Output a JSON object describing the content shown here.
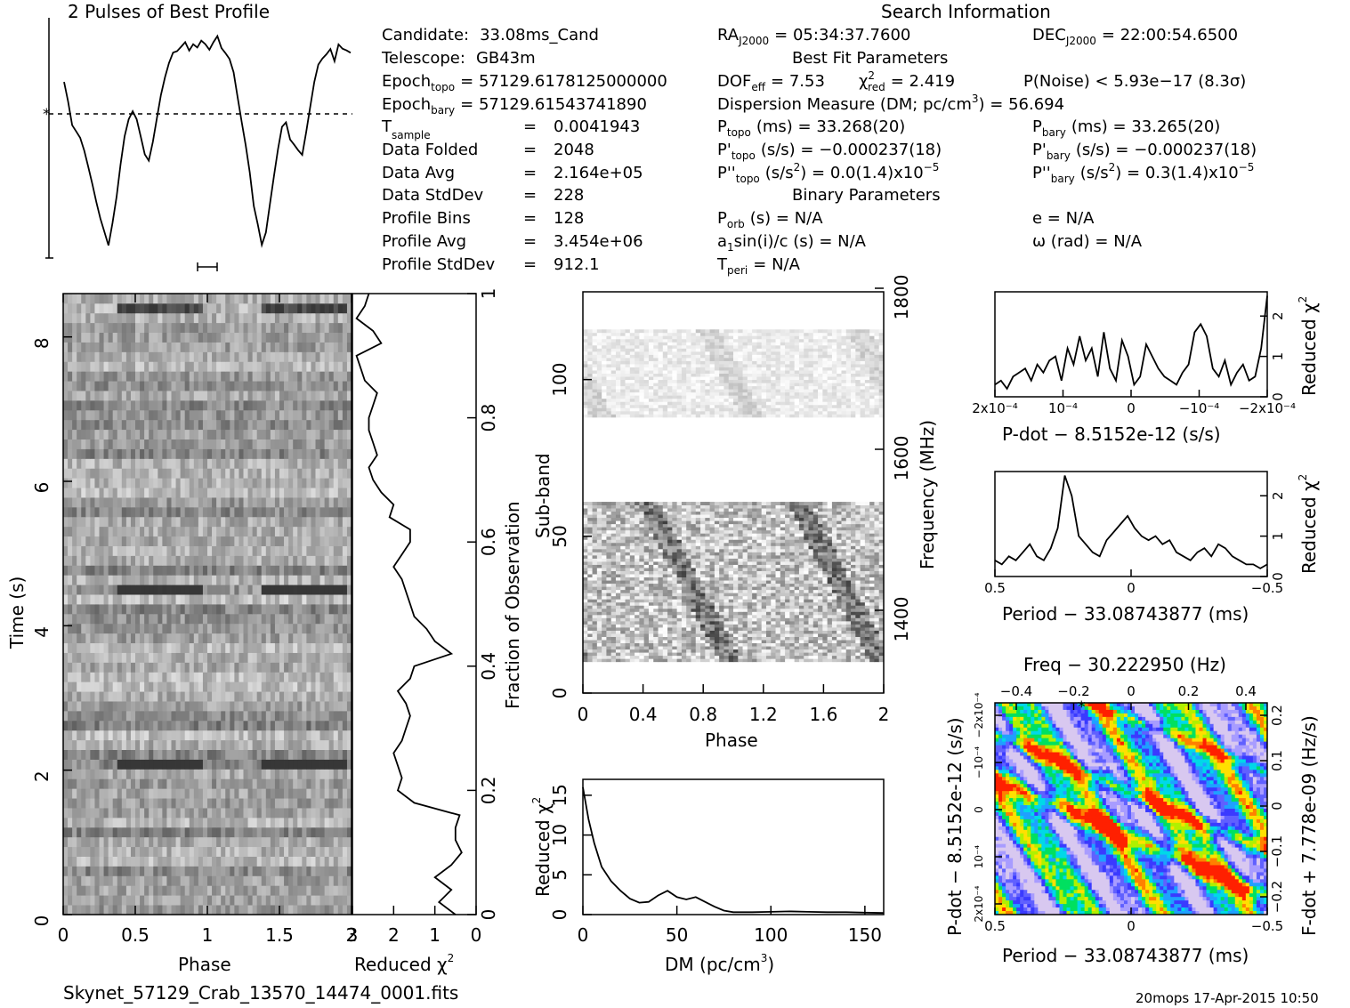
{
  "header": {
    "profile_title": "2 Pulses of Best Profile",
    "search_title": "Search Information",
    "best_fit_title": "Best Fit Parameters",
    "binary_title": "Binary Parameters",
    "filename": "Skynet_57129_Crab_13570_14474_0001.fits",
    "footer_stamp": "20mops 17-Apr-2015 10:50"
  },
  "info": {
    "col1": [
      {
        "label": "Candidate:",
        "value": "33.08ms_Cand"
      },
      {
        "label": "Telescope:",
        "value": "GB43m"
      },
      {
        "label": "Epoch",
        "sub": "topo",
        "value": "= 57129.6178125000000"
      },
      {
        "label": "Epoch",
        "sub": "bary",
        "value": "= 57129.61543741890"
      },
      {
        "label": "T",
        "sub": "sample",
        "eq": "=",
        "value": "0.0041943"
      },
      {
        "label": "Data Folded",
        "eq": "=",
        "value": "2048"
      },
      {
        "label": "Data Avg",
        "eq": "=",
        "value": "2.164e+05"
      },
      {
        "label": "Data StdDev",
        "eq": "=",
        "value": "228"
      },
      {
        "label": "Profile Bins",
        "eq": "=",
        "value": "128"
      },
      {
        "label": "Profile Avg",
        "eq": "=",
        "value": "3.454e+06"
      },
      {
        "label": "Profile StdDev",
        "eq": "=",
        "value": "912.1"
      }
    ],
    "ra": {
      "label": "RA",
      "sub": "J2000",
      "value": "= 05:34:37.7600"
    },
    "dec": {
      "label": "DEC",
      "sub": "J2000",
      "value": "= 22:00:54.6500"
    },
    "dof": {
      "label": "DOF",
      "sub": "eff",
      "value": "= 7.53"
    },
    "chi2": {
      "label": "χ",
      "sup": "2",
      "sub": "red",
      "value": "= 2.419"
    },
    "pnoise": "P(Noise) < 5.93e−17   (8.3σ)",
    "dm_line": {
      "text": "Dispersion Measure (DM; pc/cm",
      "sup": "3",
      "value": ") = 56.694"
    },
    "ptopo": {
      "label": "P",
      "sub": "topo",
      "value": "(ms) =  33.268(20)"
    },
    "pbary": {
      "label": "P",
      "sub": "bary",
      "value": "(ms) =  33.265(20)"
    },
    "pdtopo": {
      "label": "P'",
      "sub": "topo",
      "value": "(s/s) = −0.000237(18)"
    },
    "pdbary": {
      "label": "P'",
      "sub": "bary",
      "value": "(s/s) = −0.000237(18)"
    },
    "pddtopo": {
      "label": "P''",
      "sub": "topo",
      "value": "(s/s",
      "sup": "2",
      "value2": ") = 0.0(1.4)x10",
      "sup2": "−5"
    },
    "pddbary": {
      "label": "P''",
      "sub": "bary",
      "value": "(s/s",
      "sup": "2",
      "value2": ") =  0.3(1.4)x10",
      "sup2": "−5"
    },
    "porb": {
      "label": "P",
      "sub": "orb",
      "value": "(s) = N/A"
    },
    "a1": {
      "label": "a",
      "sub": "1",
      "value": "sin(i)/c (s) = N/A"
    },
    "tperi": {
      "label": "T",
      "sub": "peri",
      "value": "= N/A"
    },
    "ecc": "e = N/A",
    "omega": "ω (rad) = N/A"
  },
  "chart_data": [
    {
      "type": "line",
      "id": "pulse-profile",
      "title": "2 Pulses of Best Profile",
      "x_range": [
        0,
        2
      ],
      "values": [
        0.78,
        0.7,
        0.58,
        0.54,
        0.52,
        0.46,
        0.4,
        0.3,
        0.22,
        0.14,
        0.08,
        0.03,
        0.12,
        0.26,
        0.4,
        0.54,
        0.62,
        0.64,
        0.6,
        0.52,
        0.46,
        0.42,
        0.5,
        0.62,
        0.73,
        0.81,
        0.86,
        0.91,
        0.93,
        0.95,
        0.96,
        0.94,
        0.97,
        0.95,
        0.98,
        0.96,
        0.92,
        0.97,
        0.99,
        0.95,
        0.92,
        0.88,
        0.82,
        0.72,
        0.6,
        0.48,
        0.36,
        0.22,
        0.12,
        0.04,
        0.08,
        0.22,
        0.34,
        0.48,
        0.58,
        0.6,
        0.52,
        0.48,
        0.47,
        0.46,
        0.56,
        0.68,
        0.78,
        0.88,
        0.9,
        0.92,
        0.94,
        0.89,
        0.95,
        0.94,
        0.93,
        0.91
      ],
      "mean_level": 0.62
    },
    {
      "type": "heatmap",
      "id": "time-phase",
      "xlabel": "Phase",
      "ylabel": "Time (s)",
      "x_ticks": [
        "0",
        "0.5",
        "1",
        "1.5",
        "2"
      ],
      "y_ticks": [
        "0",
        "2",
        "4",
        "6",
        "8"
      ],
      "x_range": [
        0,
        2
      ],
      "y_range": [
        0,
        8.6
      ]
    },
    {
      "type": "line",
      "id": "time-chi2",
      "xlabel": "Reduced χ",
      "xlabel_sup": "2",
      "ylabel": "Fraction of Observation",
      "x_ticks": [
        "3",
        "2",
        "1",
        "0"
      ],
      "y_ticks": [
        "0",
        "0.2",
        "0.4",
        "0.6",
        "0.8",
        "1"
      ],
      "x_range": [
        3,
        0
      ],
      "fractions": [
        0,
        0.02,
        0.04,
        0.06,
        0.08,
        0.1,
        0.12,
        0.14,
        0.16,
        0.18,
        0.2,
        0.22,
        0.24,
        0.26,
        0.28,
        0.3,
        0.32,
        0.34,
        0.36,
        0.38,
        0.4,
        0.42,
        0.44,
        0.46,
        0.48,
        0.5,
        0.52,
        0.54,
        0.56,
        0.58,
        0.6,
        0.62,
        0.64,
        0.66,
        0.68,
        0.7,
        0.72,
        0.74,
        0.76,
        0.78,
        0.8,
        0.82,
        0.84,
        0.86,
        0.88,
        0.9,
        0.92,
        0.94,
        0.96,
        0.98,
        1.0
      ],
      "values": [
        0.5,
        0.9,
        0.6,
        1.0,
        0.6,
        0.35,
        0.5,
        0.5,
        0.4,
        1.5,
        1.9,
        1.8,
        1.9,
        2.0,
        1.8,
        1.7,
        1.6,
        1.7,
        1.9,
        1.6,
        1.5,
        0.6,
        1.0,
        1.2,
        1.5,
        1.6,
        1.7,
        1.8,
        2.0,
        1.8,
        1.6,
        1.6,
        2.1,
        2.0,
        2.3,
        2.5,
        2.6,
        2.4,
        2.5,
        2.6,
        2.6,
        2.5,
        2.4,
        2.7,
        2.8,
        2.9,
        2.3,
        2.5,
        2.9,
        2.7,
        2.6
      ]
    },
    {
      "type": "heatmap",
      "id": "subband-phase",
      "xlabel": "Phase",
      "ylabel": "Sub-band",
      "y2label": "Frequency (MHz)",
      "x_ticks": [
        "0",
        "0.4",
        "0.8",
        "1.2",
        "1.6",
        "2"
      ],
      "y_ticks": [
        "0",
        "50",
        "100"
      ],
      "y2_ticks": [
        "1400",
        "1600",
        "1800"
      ],
      "x_range": [
        0,
        2
      ],
      "y_range": [
        0,
        128
      ]
    },
    {
      "type": "line",
      "id": "dm-chi2",
      "xlabel": "DM (pc/cm",
      "xlabel_sup": "3",
      "xlabel_end": ")",
      "ylabel": "Reduced χ",
      "ylabel_sup": "2",
      "x_ticks": [
        "0",
        "50",
        "100",
        "150"
      ],
      "y_ticks": [
        "0",
        "5",
        "10",
        "15"
      ],
      "x": [
        0,
        3,
        6,
        10,
        15,
        20,
        25,
        30,
        35,
        40,
        45,
        50,
        55,
        60,
        65,
        70,
        75,
        80,
        90,
        100,
        110,
        120,
        130,
        140,
        150,
        160
      ],
      "y": [
        16,
        12,
        9,
        6,
        4.2,
        3.0,
        2.0,
        1.5,
        1.6,
        2.4,
        3.0,
        2.2,
        1.9,
        2.2,
        1.6,
        1.0,
        0.5,
        0.3,
        0.3,
        0.35,
        0.4,
        0.35,
        0.3,
        0.3,
        0.25,
        0.2
      ],
      "xlim": [
        0,
        160
      ],
      "ylim": [
        0,
        17
      ]
    },
    {
      "type": "line",
      "id": "pdot-chi2",
      "xlabel": "P-dot − 8.5152e-12 (s/s)",
      "ylabel": "Reduced χ",
      "ylabel_sup": "2",
      "x_ticks": [
        "2x10⁻⁴",
        "10⁻⁴",
        "0",
        "−10⁻⁴",
        "−2x10⁻⁴"
      ],
      "y_ticks": [
        "0",
        "1",
        "2"
      ],
      "values": [
        0.3,
        0.4,
        0.2,
        0.5,
        0.6,
        0.7,
        0.4,
        0.8,
        0.6,
        0.9,
        1.0,
        0.4,
        1.2,
        0.8,
        1.5,
        0.9,
        1.2,
        0.5,
        1.6,
        0.7,
        0.4,
        1.4,
        1.0,
        0.3,
        0.5,
        1.3,
        1.0,
        0.7,
        0.5,
        0.4,
        0.3,
        0.6,
        0.8,
        1.6,
        1.8,
        1.5,
        0.7,
        0.5,
        0.9,
        0.3,
        0.6,
        0.8,
        0.4,
        0.5,
        1.2,
        2.5
      ],
      "ylim": [
        0,
        2.6
      ]
    },
    {
      "type": "line",
      "id": "period-chi2",
      "xlabel": "Period − 33.08743877 (ms)",
      "ylabel": "Reduced χ",
      "ylabel_sup": "2",
      "x_ticks": [
        "0.5",
        "0",
        "−0.5"
      ],
      "y_ticks": [
        "0",
        "1",
        "2"
      ],
      "values": [
        0.4,
        0.3,
        0.5,
        0.4,
        0.6,
        0.8,
        0.5,
        0.4,
        0.7,
        1.2,
        2.5,
        2.0,
        1.0,
        0.8,
        0.6,
        0.5,
        0.9,
        1.1,
        1.3,
        1.5,
        1.2,
        1.0,
        0.9,
        1.0,
        0.8,
        0.9,
        0.6,
        0.5,
        0.4,
        0.6,
        0.7,
        0.5,
        0.8,
        0.7,
        0.5,
        0.4,
        0.3,
        0.3,
        0.2,
        0.3
      ],
      "ylim": [
        0,
        2.6
      ]
    },
    {
      "type": "heatmap",
      "id": "period-pdot",
      "title": "Freq − 30.222950 (Hz)",
      "xlabel": "Period − 33.08743877 (ms)",
      "ylabel": "P-dot − 8.5152e-12 (s/s)",
      "y2label": "F-dot + 7.778e-09 (Hz/s)",
      "x_ticks": [
        "0.5",
        "0",
        "−0.5"
      ],
      "top_ticks": [
        "−0.4",
        "−0.2",
        "0",
        "0.2",
        "0.4"
      ],
      "y_ticks": [
        "2x10⁻⁴",
        "10⁻⁴",
        "0",
        "−10⁻⁴",
        "−2x10⁻⁴"
      ],
      "y2_ticks": [
        "−0.2",
        "−0.1",
        "0",
        "0.1",
        "0.2"
      ]
    }
  ]
}
